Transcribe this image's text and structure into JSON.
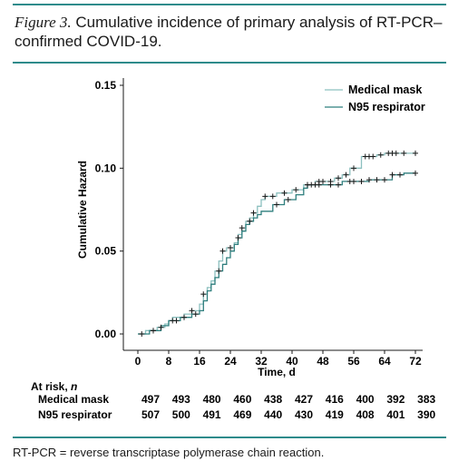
{
  "caption": {
    "figure_label": "Figure 3.",
    "text": " Cumulative incidence of primary analysis of RT-PCR–confirmed COVID-19."
  },
  "footnote": "RT-PCR = reverse transcriptase polymerase chain reaction.",
  "colors": {
    "rule": "#2e8b8b",
    "medical_mask": "#8cc0bf",
    "n95": "#2f7f7e",
    "censor": "#1a1a1a"
  },
  "chart_data": {
    "type": "line",
    "step": true,
    "xlabel": "Time, d",
    "ylabel": "Cumulative Hazard",
    "xlim": [
      0,
      72
    ],
    "ylim": [
      0,
      0.15
    ],
    "x_ticks": [
      0,
      8,
      16,
      24,
      32,
      40,
      48,
      56,
      64,
      72
    ],
    "x_tick_labels": [
      "0",
      "8",
      "16",
      "24",
      "32",
      "40",
      "48",
      "56",
      "64",
      "72"
    ],
    "y_ticks": [
      0,
      0.05,
      0.1,
      0.15
    ],
    "y_tick_labels": [
      "0.00",
      "0.05",
      "0.10",
      "0.15"
    ],
    "legend_position": "top-right",
    "series": [
      {
        "name": "Medical mask",
        "points": [
          [
            0,
            0
          ],
          [
            2,
            0
          ],
          [
            2,
            0.002
          ],
          [
            5,
            0.002
          ],
          [
            5,
            0.004
          ],
          [
            7,
            0.004
          ],
          [
            7,
            0.006
          ],
          [
            8,
            0.006
          ],
          [
            8,
            0.008
          ],
          [
            9,
            0.008
          ],
          [
            9,
            0.01
          ],
          [
            12,
            0.01
          ],
          [
            12,
            0.012
          ],
          [
            14,
            0.012
          ],
          [
            14,
            0.014
          ],
          [
            16,
            0.014
          ],
          [
            16,
            0.018
          ],
          [
            17,
            0.018
          ],
          [
            17,
            0.024
          ],
          [
            18,
            0.024
          ],
          [
            18,
            0.028
          ],
          [
            19,
            0.028
          ],
          [
            19,
            0.032
          ],
          [
            20,
            0.032
          ],
          [
            20,
            0.038
          ],
          [
            21,
            0.038
          ],
          [
            21,
            0.044
          ],
          [
            22,
            0.044
          ],
          [
            22,
            0.05
          ],
          [
            23,
            0.05
          ],
          [
            23,
            0.052
          ],
          [
            25,
            0.052
          ],
          [
            25,
            0.055
          ],
          [
            26,
            0.055
          ],
          [
            26,
            0.06
          ],
          [
            27,
            0.06
          ],
          [
            27,
            0.064
          ],
          [
            28,
            0.064
          ],
          [
            28,
            0.068
          ],
          [
            29,
            0.068
          ],
          [
            29,
            0.07
          ],
          [
            30,
            0.07
          ],
          [
            30,
            0.073
          ],
          [
            31,
            0.073
          ],
          [
            31,
            0.077
          ],
          [
            32,
            0.077
          ],
          [
            32,
            0.081
          ],
          [
            33,
            0.081
          ],
          [
            33,
            0.083
          ],
          [
            36,
            0.083
          ],
          [
            36,
            0.085
          ],
          [
            40,
            0.085
          ],
          [
            40,
            0.087
          ],
          [
            43,
            0.087
          ],
          [
            43,
            0.09
          ],
          [
            46,
            0.09
          ],
          [
            46,
            0.092
          ],
          [
            51,
            0.092
          ],
          [
            51,
            0.094
          ],
          [
            53,
            0.094
          ],
          [
            53,
            0.096
          ],
          [
            55,
            0.096
          ],
          [
            55,
            0.1
          ],
          [
            58,
            0.1
          ],
          [
            58,
            0.107
          ],
          [
            62,
            0.107
          ],
          [
            62,
            0.108
          ],
          [
            64,
            0.108
          ],
          [
            64,
            0.109
          ],
          [
            72,
            0.109
          ]
        ],
        "censored": [
          [
            1,
            0
          ],
          [
            4,
            0.002
          ],
          [
            6,
            0.004
          ],
          [
            10,
            0.008
          ],
          [
            14,
            0.014
          ],
          [
            17,
            0.024
          ],
          [
            22,
            0.05
          ],
          [
            24,
            0.052
          ],
          [
            27,
            0.064
          ],
          [
            30,
            0.073
          ],
          [
            33,
            0.083
          ],
          [
            35,
            0.083
          ],
          [
            38,
            0.085
          ],
          [
            41,
            0.087
          ],
          [
            44,
            0.09
          ],
          [
            47,
            0.092
          ],
          [
            48,
            0.092
          ],
          [
            50,
            0.092
          ],
          [
            52,
            0.094
          ],
          [
            54,
            0.096
          ],
          [
            56,
            0.1
          ],
          [
            59,
            0.107
          ],
          [
            60,
            0.107
          ],
          [
            61,
            0.107
          ],
          [
            63,
            0.108
          ],
          [
            65,
            0.109
          ],
          [
            66,
            0.109
          ],
          [
            67,
            0.109
          ],
          [
            69,
            0.109
          ],
          [
            72,
            0.109
          ]
        ]
      },
      {
        "name": "N95 respirator",
        "points": [
          [
            0,
            0
          ],
          [
            3,
            0
          ],
          [
            3,
            0.002
          ],
          [
            6,
            0.002
          ],
          [
            6,
            0.005
          ],
          [
            8,
            0.005
          ],
          [
            8,
            0.008
          ],
          [
            11,
            0.008
          ],
          [
            11,
            0.01
          ],
          [
            14,
            0.01
          ],
          [
            14,
            0.012
          ],
          [
            16,
            0.012
          ],
          [
            16,
            0.014
          ],
          [
            17,
            0.014
          ],
          [
            17,
            0.02
          ],
          [
            18,
            0.02
          ],
          [
            18,
            0.026
          ],
          [
            19,
            0.026
          ],
          [
            19,
            0.03
          ],
          [
            20,
            0.03
          ],
          [
            20,
            0.034
          ],
          [
            21,
            0.034
          ],
          [
            21,
            0.038
          ],
          [
            22,
            0.038
          ],
          [
            22,
            0.042
          ],
          [
            23,
            0.042
          ],
          [
            23,
            0.046
          ],
          [
            24,
            0.046
          ],
          [
            24,
            0.05
          ],
          [
            25,
            0.05
          ],
          [
            25,
            0.054
          ],
          [
            26,
            0.054
          ],
          [
            26,
            0.058
          ],
          [
            27,
            0.058
          ],
          [
            27,
            0.062
          ],
          [
            28,
            0.062
          ],
          [
            28,
            0.066
          ],
          [
            29,
            0.066
          ],
          [
            29,
            0.068
          ],
          [
            30,
            0.068
          ],
          [
            30,
            0.07
          ],
          [
            31,
            0.07
          ],
          [
            31,
            0.072
          ],
          [
            32,
            0.072
          ],
          [
            32,
            0.074
          ],
          [
            35,
            0.074
          ],
          [
            35,
            0.078
          ],
          [
            38,
            0.078
          ],
          [
            38,
            0.081
          ],
          [
            41,
            0.081
          ],
          [
            41,
            0.084
          ],
          [
            43,
            0.084
          ],
          [
            43,
            0.088
          ],
          [
            44,
            0.088
          ],
          [
            44,
            0.09
          ],
          [
            53,
            0.09
          ],
          [
            53,
            0.092
          ],
          [
            60,
            0.092
          ],
          [
            60,
            0.093
          ],
          [
            66,
            0.093
          ],
          [
            66,
            0.096
          ],
          [
            69,
            0.096
          ],
          [
            69,
            0.097
          ],
          [
            72,
            0.097
          ]
        ],
        "censored": [
          [
            4,
            0.002
          ],
          [
            9,
            0.008
          ],
          [
            12,
            0.01
          ],
          [
            15,
            0.012
          ],
          [
            21,
            0.038
          ],
          [
            26,
            0.058
          ],
          [
            29,
            0.068
          ],
          [
            36,
            0.078
          ],
          [
            39,
            0.081
          ],
          [
            44,
            0.09
          ],
          [
            45,
            0.09
          ],
          [
            46,
            0.09
          ],
          [
            47,
            0.09
          ],
          [
            50,
            0.09
          ],
          [
            52,
            0.09
          ],
          [
            55,
            0.092
          ],
          [
            56,
            0.092
          ],
          [
            58,
            0.092
          ],
          [
            60,
            0.093
          ],
          [
            62,
            0.093
          ],
          [
            64,
            0.093
          ],
          [
            66,
            0.096
          ],
          [
            68,
            0.096
          ],
          [
            72,
            0.097
          ]
        ]
      }
    ],
    "at_risk": {
      "title": "At risk, n",
      "rows": [
        {
          "label": "Medical mask",
          "values": [
            497,
            493,
            480,
            460,
            438,
            427,
            416,
            400,
            392,
            383
          ]
        },
        {
          "label": "N95 respirator",
          "values": [
            507,
            500,
            491,
            469,
            440,
            430,
            419,
            408,
            401,
            390
          ]
        }
      ]
    }
  }
}
